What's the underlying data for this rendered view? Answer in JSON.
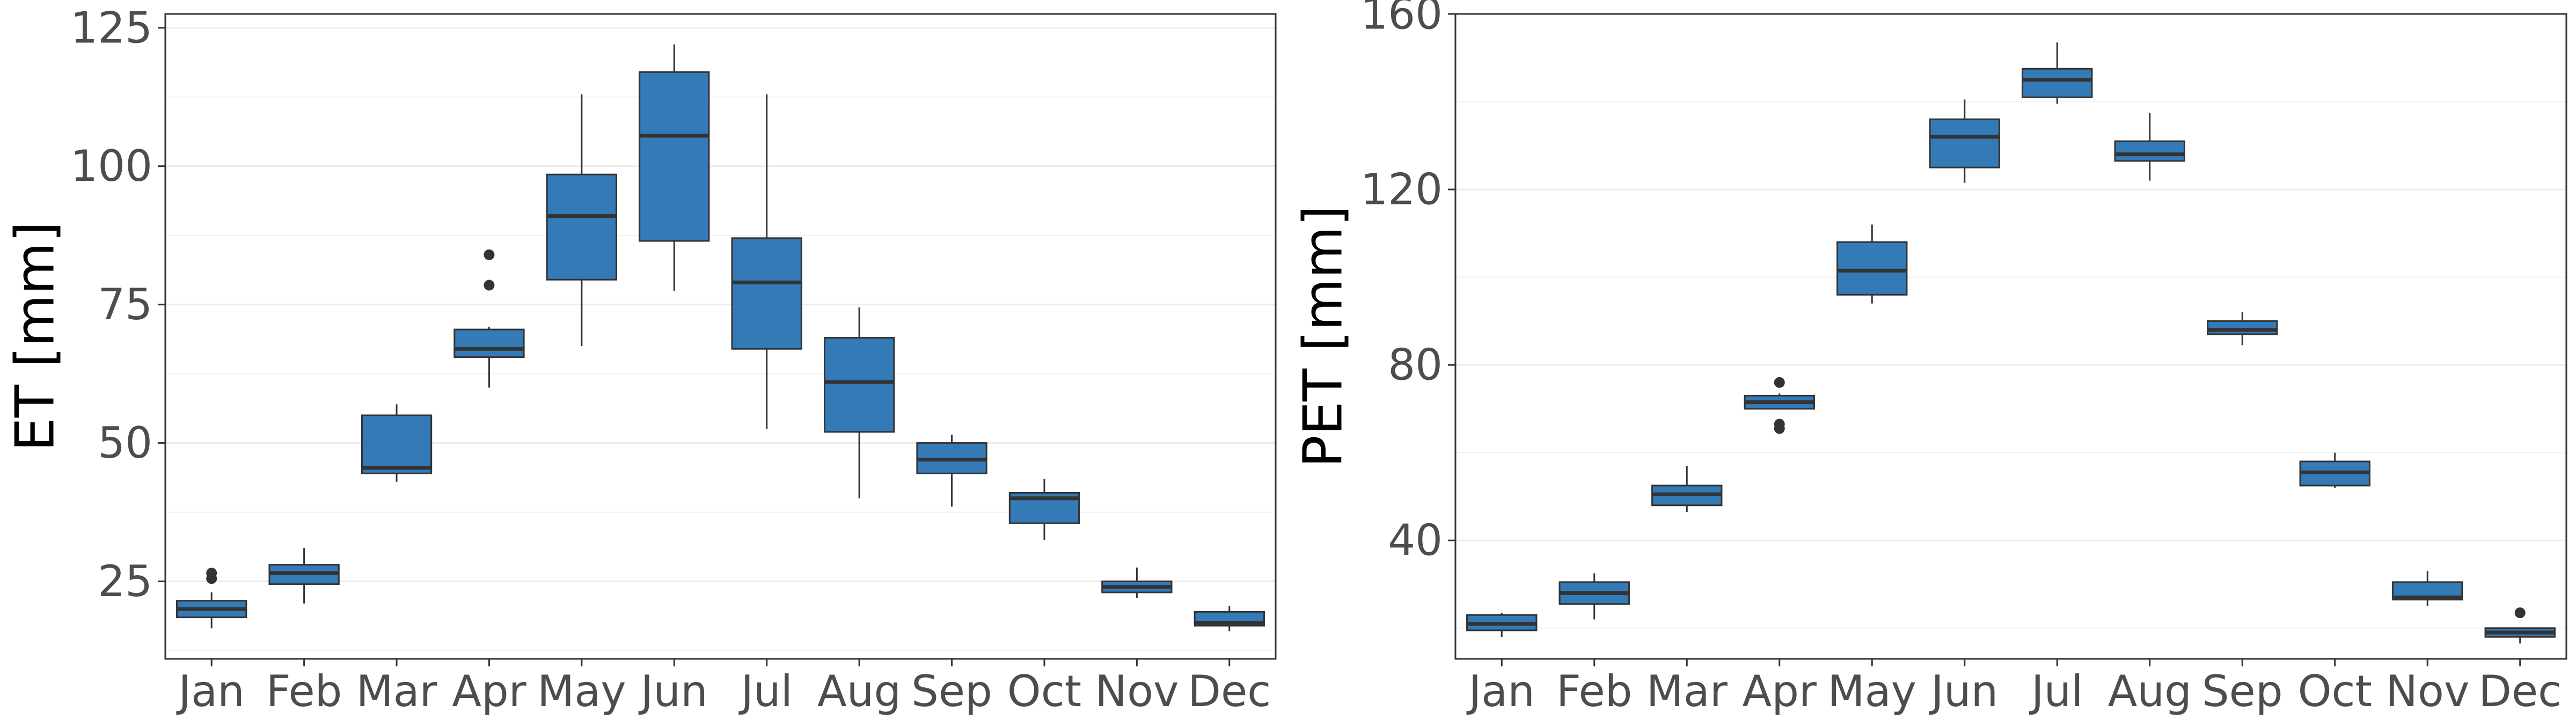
{
  "chart_data": [
    {
      "type": "box",
      "title": "",
      "xlabel": "",
      "ylabel": "ET [mm]",
      "ylim": [
        11,
        127.5
      ],
      "yticks": [
        25,
        50,
        75,
        100,
        125
      ],
      "grid": true,
      "legend": "none",
      "box_color": "#337ab7",
      "categories": [
        "Jan",
        "Feb",
        "Mar",
        "Apr",
        "May",
        "Jun",
        "Jul",
        "Aug",
        "Sep",
        "Oct",
        "Nov",
        "Dec"
      ],
      "boxes": [
        {
          "whisker_low": 16.5,
          "q1": 18.5,
          "median": 20,
          "q3": 21.5,
          "whisker_high": 23,
          "outliers": [
            25.5,
            26.5
          ]
        },
        {
          "whisker_low": 21,
          "q1": 24.5,
          "median": 26.5,
          "q3": 28,
          "whisker_high": 31,
          "outliers": []
        },
        {
          "whisker_low": 43,
          "q1": 44.5,
          "median": 45.5,
          "q3": 55,
          "whisker_high": 57,
          "outliers": []
        },
        {
          "whisker_low": 60,
          "q1": 65.5,
          "median": 67,
          "q3": 70.5,
          "whisker_high": 71,
          "outliers": [
            78.5,
            84
          ]
        },
        {
          "whisker_low": 67.5,
          "q1": 79.5,
          "median": 91,
          "q3": 98.5,
          "whisker_high": 113,
          "outliers": []
        },
        {
          "whisker_low": 77.5,
          "q1": 86.5,
          "median": 105.5,
          "q3": 117,
          "whisker_high": 122,
          "outliers": []
        },
        {
          "whisker_low": 52.5,
          "q1": 67,
          "median": 79,
          "q3": 87,
          "whisker_high": 113,
          "outliers": []
        },
        {
          "whisker_low": 40,
          "q1": 52,
          "median": 61,
          "q3": 69,
          "whisker_high": 74.5,
          "outliers": []
        },
        {
          "whisker_low": 38.5,
          "q1": 44.5,
          "median": 47,
          "q3": 50,
          "whisker_high": 51.5,
          "outliers": []
        },
        {
          "whisker_low": 32.5,
          "q1": 35.5,
          "median": 40,
          "q3": 41,
          "whisker_high": 43.5,
          "outliers": []
        },
        {
          "whisker_low": 22,
          "q1": 23,
          "median": 24,
          "q3": 25,
          "whisker_high": 27.5,
          "outliers": []
        },
        {
          "whisker_low": 16,
          "q1": 17,
          "median": 17.5,
          "q3": 19.5,
          "whisker_high": 20.5,
          "outliers": []
        }
      ]
    },
    {
      "type": "box",
      "title": "",
      "xlabel": "",
      "ylabel": "PET [mm]",
      "ylim": [
        13,
        160
      ],
      "yticks": [
        40,
        80,
        120,
        160
      ],
      "grid": true,
      "legend": "none",
      "box_color": "#337ab7",
      "categories": [
        "Jan",
        "Feb",
        "Mar",
        "Apr",
        "May",
        "Jun",
        "Jul",
        "Aug",
        "Sep",
        "Oct",
        "Nov",
        "Dec"
      ],
      "boxes": [
        {
          "whisker_low": 18,
          "q1": 19.5,
          "median": 21,
          "q3": 23,
          "whisker_high": 23.5,
          "outliers": []
        },
        {
          "whisker_low": 22,
          "q1": 25.5,
          "median": 28,
          "q3": 30.5,
          "whisker_high": 32.5,
          "outliers": []
        },
        {
          "whisker_low": 46.5,
          "q1": 48,
          "median": 50.5,
          "q3": 52.5,
          "whisker_high": 57,
          "outliers": []
        },
        {
          "whisker_low": 70,
          "q1": 70,
          "median": 71.5,
          "q3": 73,
          "whisker_high": 73.5,
          "outliers": [
            65.5,
            66.5,
            76
          ]
        },
        {
          "whisker_low": 94,
          "q1": 96,
          "median": 101.5,
          "q3": 108,
          "whisker_high": 112,
          "outliers": []
        },
        {
          "whisker_low": 121.5,
          "q1": 125,
          "median": 132,
          "q3": 136,
          "whisker_high": 140.5,
          "outliers": []
        },
        {
          "whisker_low": 139.5,
          "q1": 141,
          "median": 145,
          "q3": 147.5,
          "whisker_high": 153.5,
          "outliers": []
        },
        {
          "whisker_low": 122,
          "q1": 126.5,
          "median": 128,
          "q3": 131,
          "whisker_high": 137.5,
          "outliers": []
        },
        {
          "whisker_low": 84.5,
          "q1": 87,
          "median": 88,
          "q3": 90,
          "whisker_high": 92,
          "outliers": []
        },
        {
          "whisker_low": 52,
          "q1": 52.5,
          "median": 55.5,
          "q3": 58,
          "whisker_high": 60,
          "outliers": []
        },
        {
          "whisker_low": 25,
          "q1": 26.5,
          "median": 27,
          "q3": 30.5,
          "whisker_high": 33,
          "outliers": []
        },
        {
          "whisker_low": 16.5,
          "q1": 18,
          "median": 19,
          "q3": 20,
          "whisker_high": 20,
          "outliers": [
            23.5
          ]
        }
      ]
    }
  ]
}
